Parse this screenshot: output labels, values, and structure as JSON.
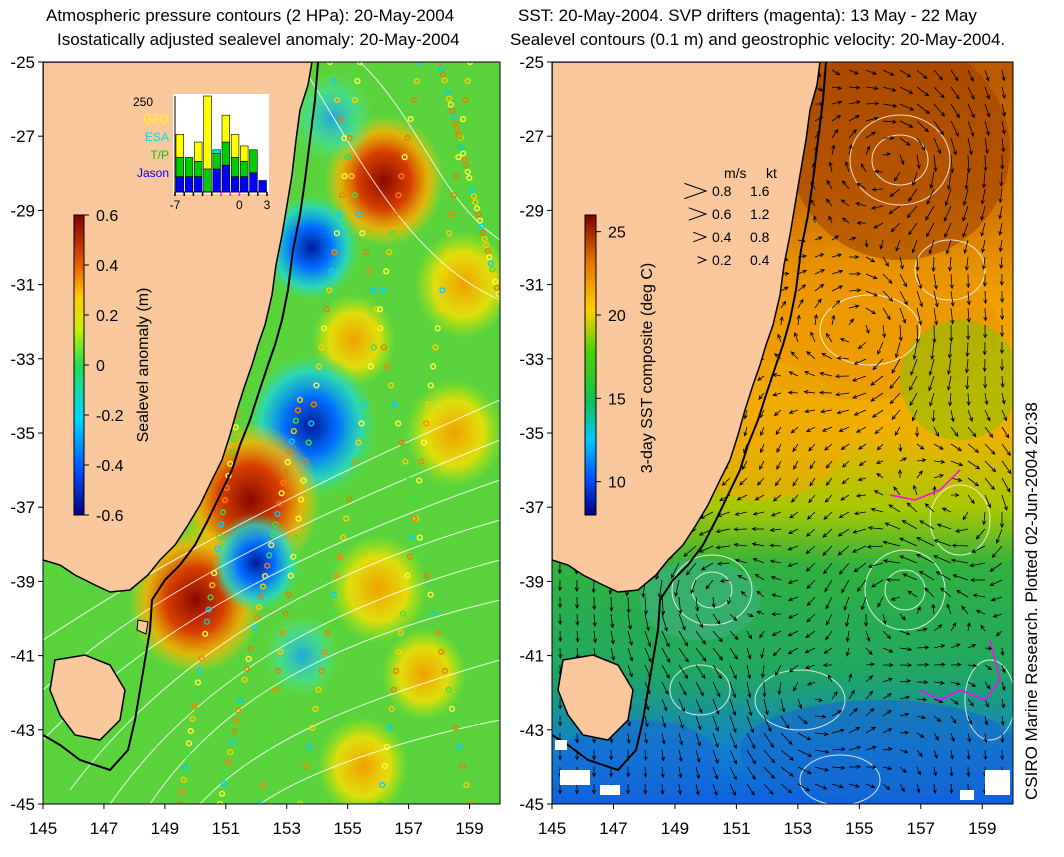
{
  "titles": {
    "left_line1": "Atmospheric pressure contours (2 HPa): 20-May-2004",
    "left_line2": "Isostatically adjusted sealevel anomaly: 20-May-2004",
    "right_line1": "SST: 20-May-2004. SVP drifters (magenta): 13 May - 22 May",
    "right_line2": "Sealevel contours (0.1 m) and geostrophic velocity: 20-May-2004."
  },
  "credit": "CSIRO Marine Research. Plotted 02-Jun-2004 20:38",
  "chart_data": [
    {
      "type": "heatmap",
      "name": "sealevel-anomaly-map",
      "xticks": [
        "145",
        "147",
        "149",
        "151",
        "153",
        "155",
        "157",
        "159"
      ],
      "yticks": [
        "-25",
        "-27",
        "-29",
        "-31",
        "-33",
        "-35",
        "-37",
        "-39",
        "-41",
        "-43",
        "-45"
      ],
      "xlim": [
        145,
        160
      ],
      "ylim": [
        -45,
        -25
      ],
      "colorbar": {
        "label": "Sealevel anomaly (m)",
        "ticks": [
          "0.6",
          "0.4",
          "0.2",
          "0",
          "-0.2",
          "-0.4",
          "-0.6"
        ],
        "range": [
          -0.6,
          0.6
        ]
      },
      "anomaly_features": [
        {
          "lon": 156.2,
          "lat": -28.2,
          "value": 0.45
        },
        {
          "lon": 153.8,
          "lat": -30.0,
          "value": -0.3
        },
        {
          "lon": 158.8,
          "lat": -31.0,
          "value": 0.3
        },
        {
          "lon": 155.2,
          "lat": -32.5,
          "value": 0.2
        },
        {
          "lon": 153.8,
          "lat": -34.8,
          "value": -0.55
        },
        {
          "lon": 158.5,
          "lat": -35.0,
          "value": 0.3
        },
        {
          "lon": 151.8,
          "lat": -36.8,
          "value": 0.6
        },
        {
          "lon": 150.0,
          "lat": -39.5,
          "value": 0.55
        },
        {
          "lon": 152.0,
          "lat": -38.5,
          "value": -0.25
        },
        {
          "lon": 156.0,
          "lat": -39.2,
          "value": 0.3
        },
        {
          "lon": 154.5,
          "lat": -26.5,
          "value": -0.2
        },
        {
          "lon": 157.5,
          "lat": -41.5,
          "value": 0.2
        },
        {
          "lon": 153.5,
          "lat": -41.0,
          "value": -0.15
        },
        {
          "lon": 155.5,
          "lat": -44.0,
          "value": 0.25
        }
      ],
      "inset": {
        "type": "bar",
        "ymax_label": "250",
        "legend": [
          {
            "name": "GFO",
            "color": "#ffff00"
          },
          {
            "name": "ESA",
            "color": "#00e0e0"
          },
          {
            "name": "T/P",
            "color": "#00cc00"
          },
          {
            "name": "Jason",
            "color": "#0000ff"
          }
        ],
        "xticks": [
          "-7",
          "0",
          "3"
        ],
        "xlim": [
          -7,
          3
        ],
        "ylim": [
          0,
          250
        ],
        "days": [
          -7,
          -6,
          -5,
          -4,
          -3,
          -2,
          -1,
          0,
          1,
          2
        ],
        "series": [
          {
            "name": "Jason",
            "values": [
              40,
              40,
              40,
              0,
              60,
              70,
              40,
              40,
              50,
              30
            ]
          },
          {
            "name": "T/P",
            "values": [
              50,
              50,
              40,
              60,
              40,
              60,
              50,
              40,
              60,
              0
            ]
          },
          {
            "name": "ESA",
            "values": [
              0,
              0,
              0,
              0,
              10,
              0,
              0,
              0,
              0,
              0
            ]
          },
          {
            "name": "GFO",
            "values": [
              60,
              0,
              50,
              190,
              0,
              70,
              60,
              40,
              0,
              0
            ]
          }
        ]
      }
    },
    {
      "type": "heatmap",
      "name": "sst-composite-map",
      "xticks": [
        "145",
        "147",
        "149",
        "151",
        "153",
        "155",
        "157",
        "159"
      ],
      "yticks": [
        "-25",
        "-27",
        "-29",
        "-31",
        "-33",
        "-35",
        "-37",
        "-39",
        "-41",
        "-43",
        "-45"
      ],
      "xlim": [
        145,
        160
      ],
      "ylim": [
        -45,
        -25
      ],
      "colorbar": {
        "label": "3-day SST composite (deg C)",
        "ticks": [
          "25",
          "20",
          "15",
          "10"
        ],
        "range": [
          8,
          26
        ]
      },
      "velocity_legend": {
        "header_ms": "m/s",
        "header_kt": "kt",
        "rows": [
          {
            "ms": "0.8",
            "kt": "1.6"
          },
          {
            "ms": "0.6",
            "kt": "1.2"
          },
          {
            "ms": "0.4",
            "kt": "0.8"
          },
          {
            "ms": "0.2",
            "kt": "0.4"
          }
        ]
      }
    }
  ]
}
